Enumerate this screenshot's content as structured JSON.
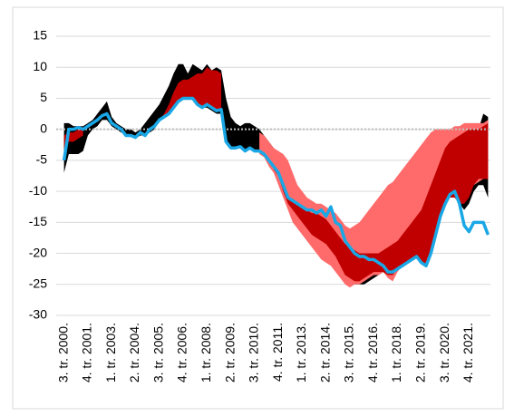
{
  "chart_data": {
    "type": "fan",
    "categories": [
      "3. tr. 2000.",
      null,
      null,
      null,
      null,
      "4. tr. 2001.",
      null,
      null,
      null,
      null,
      "1. tr. 2003.",
      null,
      null,
      null,
      null,
      "2. tr. 2004.",
      null,
      null,
      null,
      null,
      "3. tr. 2005.",
      null,
      null,
      null,
      null,
      "4. tr. 2006.",
      null,
      null,
      null,
      null,
      "1. tr. 2008.",
      null,
      null,
      null,
      null,
      "2. tr. 2009.",
      null,
      null,
      null,
      null,
      "3. tr. 2010.",
      null,
      null,
      null,
      null,
      "4. tr. 2011.",
      null,
      null,
      null,
      null,
      "1. tr. 2013.",
      null,
      null,
      null,
      null,
      "2. tr. 2014.",
      null,
      null,
      null,
      null,
      "3. tr. 2015.",
      null,
      null,
      null,
      null,
      "4. tr. 2016.",
      null,
      null,
      null,
      null,
      "1. tr. 2018.",
      null,
      null,
      null,
      null,
      "2. tr. 2019.",
      null,
      null,
      null,
      null,
      "3. tr. 2020.",
      null,
      null,
      null,
      null,
      "4. tr. 2021.",
      null,
      null,
      null,
      null
    ],
    "ylim": [
      -30,
      15
    ],
    "yticks": [
      -30,
      -25,
      -20,
      -15,
      -10,
      -5,
      0,
      5,
      10,
      15
    ],
    "grid": true,
    "bands": [
      {
        "color": "#000000",
        "low": [
          -7,
          -4,
          -4,
          -4,
          -3.5,
          -1,
          0,
          0.5,
          1.5,
          1.5,
          0.5,
          0,
          -0.5,
          -1,
          -1,
          -1.5,
          -1,
          -1,
          -0.5,
          0,
          1.5,
          2,
          2.5,
          3.5,
          4.5,
          5,
          5,
          5,
          4,
          3.5,
          3.5,
          3,
          2.5,
          2.5,
          -2,
          -3,
          -3,
          -3,
          -3.5,
          -3,
          -3.5,
          -3.5,
          -4,
          -5,
          -6,
          -7,
          -9,
          -11,
          -12,
          -13,
          -14,
          -15,
          -16,
          -17,
          -18,
          -19,
          -20,
          -21,
          -22,
          -24,
          -25,
          -25,
          -25,
          -25,
          -24.5,
          -24,
          -23.5,
          -23,
          -23,
          -23,
          -22.5,
          -22,
          -21.5,
          -21,
          -20.5,
          -21.5,
          -22,
          -20,
          -17,
          -14,
          -12,
          -11,
          -11,
          -12,
          -13,
          -12,
          -10,
          -9,
          -9,
          -11
        ],
        "high": [
          1,
          1,
          0.5,
          0.5,
          0.5,
          1,
          1.5,
          2.5,
          3.5,
          4.5,
          2,
          1,
          0.5,
          0,
          0,
          -0.5,
          0,
          1,
          2,
          3,
          4,
          5.5,
          7,
          9,
          10.5,
          10.5,
          9,
          10.5,
          10,
          9.5,
          10.5,
          9.5,
          10,
          9.5,
          5,
          2,
          1,
          0.5,
          1,
          1,
          0.5,
          0,
          -1,
          -2,
          -3,
          -4,
          -5,
          -6,
          -8,
          -10,
          -11,
          -11.5,
          -12,
          -12.5,
          -12.5,
          -13,
          -13,
          -14,
          -15,
          -16,
          -17,
          -18,
          -19,
          -19,
          -19,
          -19,
          -19,
          -19,
          -19,
          -19.5,
          -19,
          -18,
          -17,
          -16,
          -15,
          -14,
          -13,
          -12,
          -11,
          -10,
          -9,
          -8,
          -7,
          -6,
          -5,
          -4,
          -2,
          0,
          2.5,
          2
        ]
      },
      {
        "color": "#ff6b6b",
        "low": [
          null,
          null,
          null,
          null,
          null,
          null,
          null,
          null,
          null,
          null,
          null,
          null,
          null,
          null,
          null,
          null,
          null,
          null,
          null,
          null,
          null,
          null,
          null,
          null,
          null,
          null,
          null,
          null,
          null,
          null,
          null,
          null,
          null,
          null,
          null,
          null,
          null,
          null,
          null,
          null,
          null,
          -4,
          -4.5,
          -6,
          -7,
          -9,
          -11,
          -13,
          -15,
          -16,
          -17,
          -18,
          -19,
          -20,
          -21,
          -21.5,
          -22,
          -23,
          -24,
          -25,
          -25.5,
          -25,
          -25,
          -24.5,
          -24,
          -23.5,
          -23.5,
          -23,
          -24,
          -24.5,
          -23,
          -22,
          -21.5,
          -21,
          -20.5,
          -21,
          -21,
          -19,
          -16.5,
          -14,
          -12,
          -10.5,
          -10,
          -10.5,
          -11,
          -10,
          -9,
          -8.5,
          -8,
          -8
        ],
        "high": [
          null,
          null,
          null,
          null,
          null,
          null,
          null,
          null,
          null,
          null,
          null,
          null,
          null,
          null,
          null,
          null,
          null,
          null,
          null,
          null,
          null,
          null,
          null,
          null,
          null,
          null,
          null,
          null,
          null,
          null,
          null,
          null,
          null,
          null,
          null,
          null,
          null,
          null,
          null,
          null,
          null,
          -0.5,
          -1,
          -2,
          -3,
          -3.5,
          -4,
          -5,
          -7,
          -9,
          -10,
          -11,
          -11.5,
          -12,
          -12,
          -12.5,
          -13,
          -13.5,
          -14.5,
          -15.5,
          -16,
          -15.5,
          -15,
          -14,
          -13,
          -12,
          -11,
          -10,
          -9,
          -8.5,
          -7.5,
          -6.5,
          -5.5,
          -4.5,
          -3.5,
          -2.5,
          -1.5,
          -0.5,
          0,
          0,
          0,
          0,
          0.5,
          0.5,
          1,
          1,
          1,
          1,
          1,
          1.5
        ]
      },
      {
        "color": "#c00000",
        "low": [
          -4,
          -2,
          -2,
          -1.5,
          -1,
          null,
          null,
          null,
          null,
          null,
          null,
          null,
          null,
          null,
          null,
          null,
          null,
          null,
          null,
          null,
          1.5,
          2,
          2.5,
          3.5,
          4.5,
          5,
          5,
          5,
          4,
          3.5,
          4,
          3.5,
          3,
          3.2,
          null,
          null,
          null,
          null,
          null,
          null,
          null,
          null,
          null,
          null,
          -6.5,
          -7.5,
          -10,
          -12,
          -13,
          -14,
          -15,
          -16,
          -17,
          -17.5,
          -18,
          -18.5,
          -19.5,
          -20.5,
          -22,
          -23.5,
          -24,
          -24.5,
          -24.5,
          -24,
          -23.5,
          -23,
          -23,
          -23,
          -23.5,
          -23.5,
          -22.5,
          -22,
          -21.5,
          -21,
          -20.5,
          -21.5,
          -22,
          -20,
          -17,
          -14,
          -12,
          -11,
          -11,
          -12,
          -12,
          -11,
          -9,
          -8,
          -8,
          -8
        ],
        "high": [
          -1,
          -0.5,
          -0.5,
          0,
          0,
          null,
          null,
          null,
          null,
          null,
          null,
          null,
          null,
          null,
          null,
          null,
          null,
          null,
          null,
          null,
          1.5,
          2.5,
          4,
          6,
          7.5,
          8,
          8,
          8.5,
          9,
          9,
          10,
          9.5,
          9.5,
          9,
          null,
          null,
          null,
          null,
          null,
          null,
          null,
          null,
          null,
          null,
          -6,
          -7,
          -9,
          -11,
          -11.5,
          -12,
          -12.5,
          -13,
          -13.5,
          -13.5,
          -14,
          -14.5,
          -15.5,
          -16.5,
          -17.5,
          -18.5,
          -19,
          -19.5,
          -20,
          -20,
          -20,
          -20,
          -20,
          -19.5,
          -19,
          -18.5,
          -18,
          -17,
          -16,
          -15,
          -14,
          -13,
          -11,
          -9,
          -7,
          -5,
          -3,
          -2,
          -1.5,
          -1,
          -0.5,
          0,
          0,
          0,
          0.5,
          1
        ]
      }
    ],
    "series": [
      {
        "color": "#1aa7e6",
        "values": [
          -5,
          0,
          0,
          0.3,
          0,
          0.5,
          1,
          1.5,
          2.2,
          2.5,
          1,
          0.5,
          0,
          -1,
          -1,
          -1.3,
          -0.5,
          -1,
          0,
          0.5,
          1.5,
          2,
          2.5,
          3.5,
          4.5,
          5,
          5,
          5,
          4,
          3.5,
          4,
          3.5,
          3,
          3.2,
          -2,
          -3,
          -3,
          -2.8,
          -3.5,
          -3,
          -3.5,
          -3.5,
          -4,
          -5,
          -6,
          -7,
          -9,
          -11,
          -11.5,
          -12,
          -12.5,
          -13,
          -13,
          -13.5,
          -13,
          -14,
          -12.5,
          -15,
          -15.5,
          -18,
          -19,
          -20,
          -20.5,
          -20.5,
          -21,
          -21,
          -21.5,
          -22,
          -23,
          -23,
          -22.5,
          -22,
          -21.5,
          -21,
          -20.5,
          -21.5,
          -22,
          -20,
          -17,
          -14,
          -12,
          -10.5,
          -10,
          -12,
          -15.5,
          -16.5,
          -15,
          -15,
          -15,
          -17
        ]
      }
    ]
  }
}
